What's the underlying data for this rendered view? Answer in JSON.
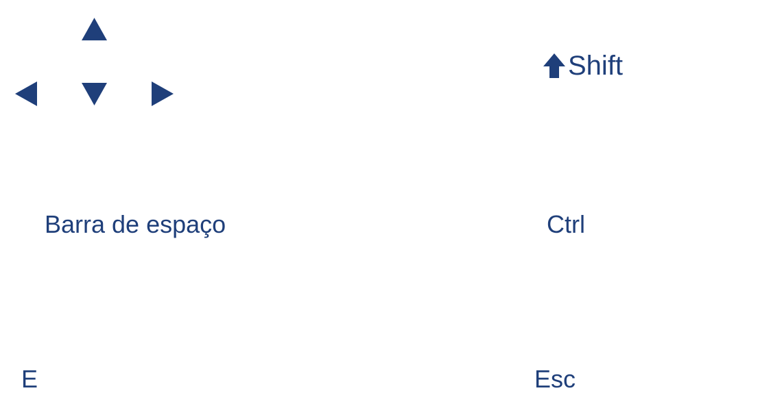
{
  "theme": {
    "key_color": "#1f3f7a"
  },
  "arrows": [
    {
      "id": "up",
      "icon": "arrow-up-icon"
    },
    {
      "id": "left",
      "icon": "arrow-left-icon"
    },
    {
      "id": "down",
      "icon": "arrow-down-icon"
    },
    {
      "id": "right",
      "icon": "arrow-right-icon"
    }
  ],
  "keys": {
    "shift": {
      "label": "Shift",
      "icon": "shift-arrow-icon"
    },
    "space": {
      "label": "Barra de espaço"
    },
    "ctrl": {
      "label": "Ctrl"
    },
    "e": {
      "label": "E"
    },
    "esc": {
      "label": "Esc"
    }
  }
}
